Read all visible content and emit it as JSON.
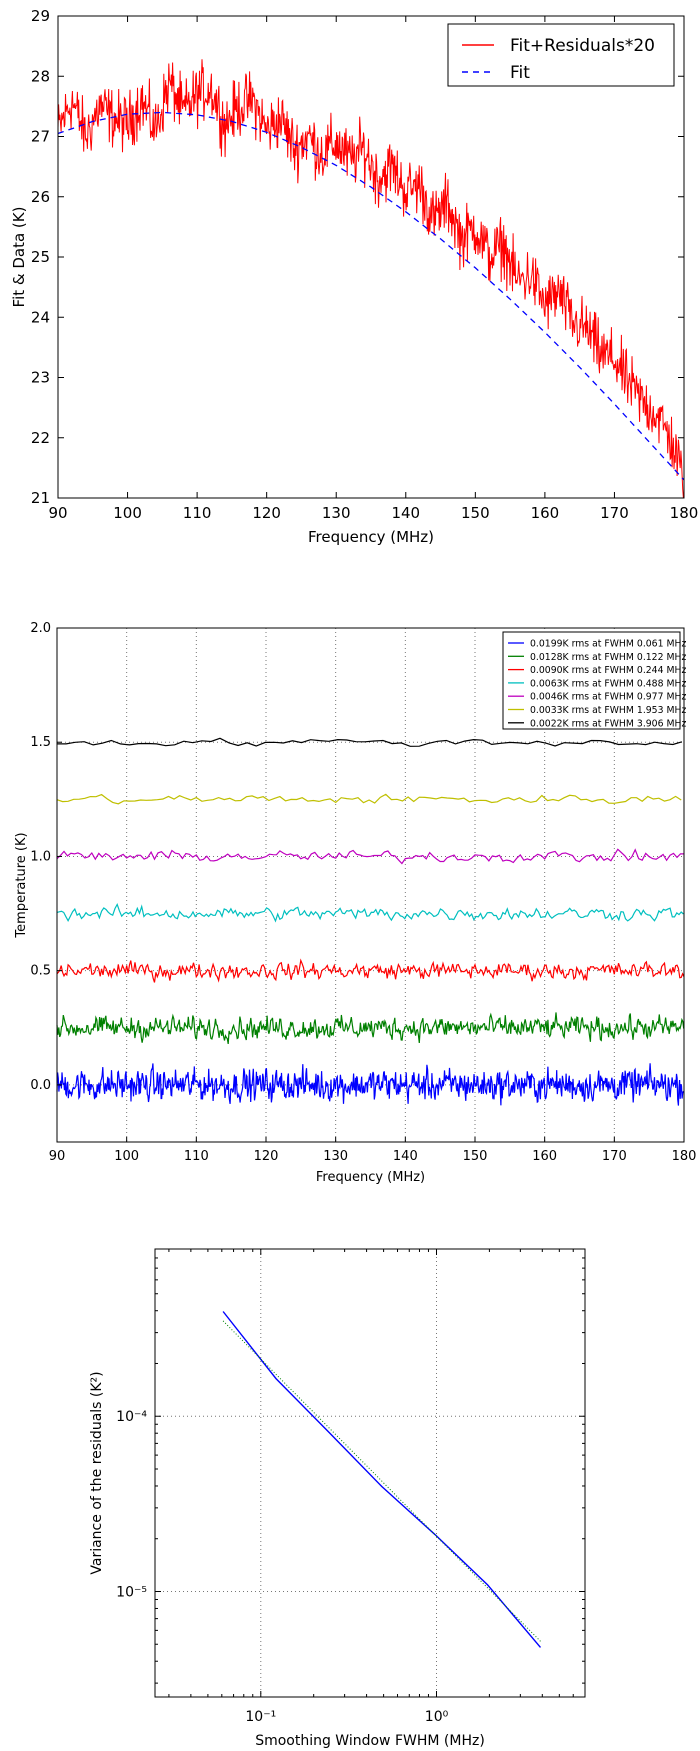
{
  "chart_data": [
    {
      "type": "line",
      "xlabel": "Frequency (MHz)",
      "ylabel": "Fit & Data (K)",
      "xlim": [
        90,
        180
      ],
      "ylim": [
        21,
        29
      ],
      "x_ticks": [
        90,
        100,
        110,
        120,
        130,
        140,
        150,
        160,
        170,
        180
      ],
      "y_ticks": [
        21,
        22,
        23,
        24,
        25,
        26,
        27,
        28,
        29
      ],
      "grid": false,
      "legend_position": "top-right",
      "series": [
        {
          "name": "Fit+Residuals*20",
          "color": "#ff0000",
          "style": "solid",
          "x": [
            90,
            92,
            94,
            96,
            98,
            100,
            102,
            104,
            106,
            108,
            110,
            112,
            114,
            116,
            118,
            120,
            122,
            124,
            126,
            128,
            130,
            132,
            134,
            136,
            138,
            140,
            142,
            144,
            146,
            148,
            150,
            152,
            154,
            156,
            158,
            160,
            162,
            164,
            166,
            168,
            170,
            172,
            174,
            176,
            178,
            180
          ],
          "values": [
            27.1,
            27.6,
            27.0,
            27.5,
            27.3,
            27.2,
            27.6,
            27.1,
            27.9,
            27.4,
            27.7,
            27.8,
            27.2,
            27.5,
            27.6,
            27.1,
            27.3,
            26.8,
            27.0,
            26.7,
            26.9,
            26.6,
            26.8,
            26.3,
            26.5,
            26.1,
            26.2,
            25.6,
            25.9,
            25.3,
            25.5,
            25.0,
            25.2,
            24.6,
            24.7,
            24.2,
            24.4,
            23.9,
            23.8,
            23.4,
            23.3,
            22.9,
            22.6,
            22.4,
            22.0,
            21.3
          ]
        },
        {
          "name": "Fit",
          "color": "#0000ff",
          "style": "dashed",
          "x": [
            90,
            95,
            100,
            105,
            110,
            115,
            120,
            125,
            130,
            135,
            140,
            145,
            150,
            155,
            160,
            165,
            170,
            175,
            180
          ],
          "values": [
            27.05,
            27.25,
            27.37,
            27.4,
            27.36,
            27.25,
            27.07,
            26.82,
            26.52,
            26.16,
            25.75,
            25.3,
            24.82,
            24.3,
            23.75,
            23.17,
            22.56,
            21.93,
            21.3
          ]
        }
      ]
    },
    {
      "type": "line",
      "xlabel": "Frequency (MHz)",
      "ylabel": "Temperature (K)",
      "xlim": [
        90,
        180
      ],
      "ylim": [
        -0.25,
        2.0
      ],
      "x_ticks": [
        90,
        100,
        110,
        120,
        130,
        140,
        150,
        160,
        170,
        180
      ],
      "y_ticks": [
        "0.0",
        "0.5",
        "1.0",
        "1.5",
        "2.0"
      ],
      "grid": true,
      "legend_position": "top-right",
      "series": [
        {
          "name": "0.0199K rms at FWHM 0.061 MHz",
          "color": "#0000ff",
          "offset": 0.0,
          "rms": 0.0199,
          "fwhm_mhz": 0.061
        },
        {
          "name": "0.0128K rms at FWHM 0.122 MHz",
          "color": "#008000",
          "offset": 0.25,
          "rms": 0.0128,
          "fwhm_mhz": 0.122
        },
        {
          "name": "0.0090K rms at FWHM 0.244 MHz",
          "color": "#ff0000",
          "offset": 0.5,
          "rms": 0.009,
          "fwhm_mhz": 0.244
        },
        {
          "name": "0.0063K rms at FWHM 0.488 MHz",
          "color": "#00bfbf",
          "offset": 0.75,
          "rms": 0.0063,
          "fwhm_mhz": 0.488
        },
        {
          "name": "0.0046K rms at FWHM 0.977 MHz",
          "color": "#bf00bf",
          "offset": 1.0,
          "rms": 0.0046,
          "fwhm_mhz": 0.977
        },
        {
          "name": "0.0033K rms at FWHM 1.953 MHz",
          "color": "#bfbf00",
          "offset": 1.25,
          "rms": 0.0033,
          "fwhm_mhz": 1.953
        },
        {
          "name": "0.0022K rms at FWHM 3.906 MHz",
          "color": "#000000",
          "offset": 1.5,
          "rms": 0.0022,
          "fwhm_mhz": 3.906
        }
      ]
    },
    {
      "type": "line",
      "xlabel": "Smoothing Window FWHM (MHz)",
      "ylabel": "Variance of the residuals (K²)",
      "x_scale": "log",
      "y_scale": "log",
      "xlim": [
        0.025,
        7
      ],
      "ylim": [
        2.5e-06,
        0.0009
      ],
      "x_tick_labels": [
        "10⁻¹",
        "10⁰"
      ],
      "x_tick_values": [
        0.1,
        1
      ],
      "y_tick_labels": [
        "10⁻⁴",
        "10⁻⁵"
      ],
      "y_tick_values": [
        0.0001,
        1e-05
      ],
      "grid": true,
      "series": [
        {
          "color": "#0000ff",
          "style": "solid",
          "x": [
            0.061,
            0.122,
            0.244,
            0.488,
            0.977,
            1.953,
            3.906
          ],
          "values": [
            0.000396,
            0.000164,
            8.1e-05,
            3.97e-05,
            2.12e-05,
            1.09e-05,
            4.8e-06
          ]
        },
        {
          "color": "#008000",
          "style": "dotted",
          "x": [
            0.061,
            3.906
          ],
          "values": [
            0.00035,
            5.2e-06
          ]
        }
      ]
    }
  ]
}
